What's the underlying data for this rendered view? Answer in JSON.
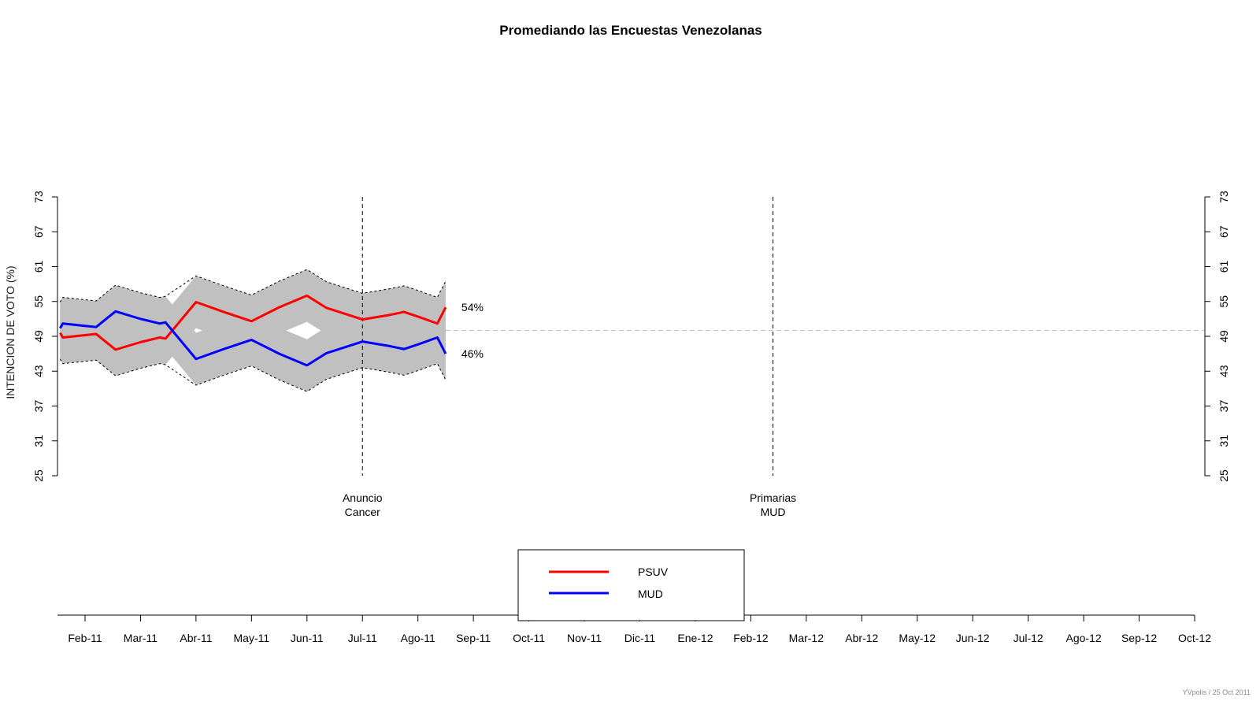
{
  "chart_data": {
    "type": "line",
    "title": "Promediando las Encuestas Venezolanas",
    "ylabel": "INTENCION DE VOTO (%)",
    "xlabel": "",
    "ylim": [
      25,
      73
    ],
    "y_ticks": [
      25,
      31,
      37,
      43,
      49,
      55,
      61,
      67,
      73
    ],
    "x_month_labels": [
      "Feb-11",
      "Mar-11",
      "Abr-11",
      "May-11",
      "Jun-11",
      "Jul-11",
      "Ago-11",
      "Sep-11",
      "Oct-11",
      "Nov-11",
      "Dic-11",
      "Ene-12",
      "Feb-12",
      "Mar-12",
      "Abr-12",
      "May-12",
      "Jun-12",
      "Jul-12",
      "Ago-12",
      "Sep-12",
      "Oct-12"
    ],
    "x_range_months": [
      0.5,
      21.0
    ],
    "reference_line": {
      "y": 50,
      "style": "dashed",
      "color": "#bbbbbb"
    },
    "events": [
      {
        "label_line1": "Anuncio",
        "label_line2": "Cancer",
        "x": 6.0
      },
      {
        "label_line1": "Primarias",
        "label_line2": "MUD",
        "x": 13.4
      }
    ],
    "series": [
      {
        "name": "PSUV",
        "color": "#ff0000",
        "x": [
          0.55,
          0.6,
          0.7,
          1.2,
          1.55,
          2.0,
          2.35,
          2.45,
          3.0,
          3.5,
          4.0,
          4.5,
          5.0,
          5.35,
          6.0,
          6.5,
          6.75,
          7.0,
          7.35,
          7.5
        ],
        "values": [
          49.6,
          48.8,
          48.9,
          49.4,
          46.7,
          48.0,
          48.8,
          48.6,
          54.9,
          53.2,
          51.6,
          54.0,
          56.0,
          53.9,
          51.9,
          52.7,
          53.2,
          52.4,
          51.2,
          54.0
        ],
        "end_label": "54%"
      },
      {
        "name": "MUD",
        "color": "#0000ff",
        "x": [
          0.55,
          0.6,
          0.7,
          1.2,
          1.55,
          2.0,
          2.35,
          2.45,
          3.0,
          3.5,
          4.0,
          4.5,
          5.0,
          5.35,
          6.0,
          6.5,
          6.75,
          7.0,
          7.35,
          7.5
        ],
        "values": [
          50.4,
          51.2,
          51.1,
          50.6,
          53.3,
          52.0,
          51.2,
          51.4,
          45.1,
          46.8,
          48.4,
          46.0,
          44.0,
          46.1,
          48.1,
          47.3,
          46.8,
          47.6,
          48.8,
          46.0
        ],
        "end_label": "46%"
      }
    ],
    "confidence_band": {
      "color": "#c0c0c0",
      "half_width": 4.5
    },
    "legend": {
      "position": "bottom-center",
      "entries": [
        "PSUV",
        "MUD"
      ]
    }
  },
  "footer": {
    "credit": "YVpolis / 25 Oct 2011"
  }
}
